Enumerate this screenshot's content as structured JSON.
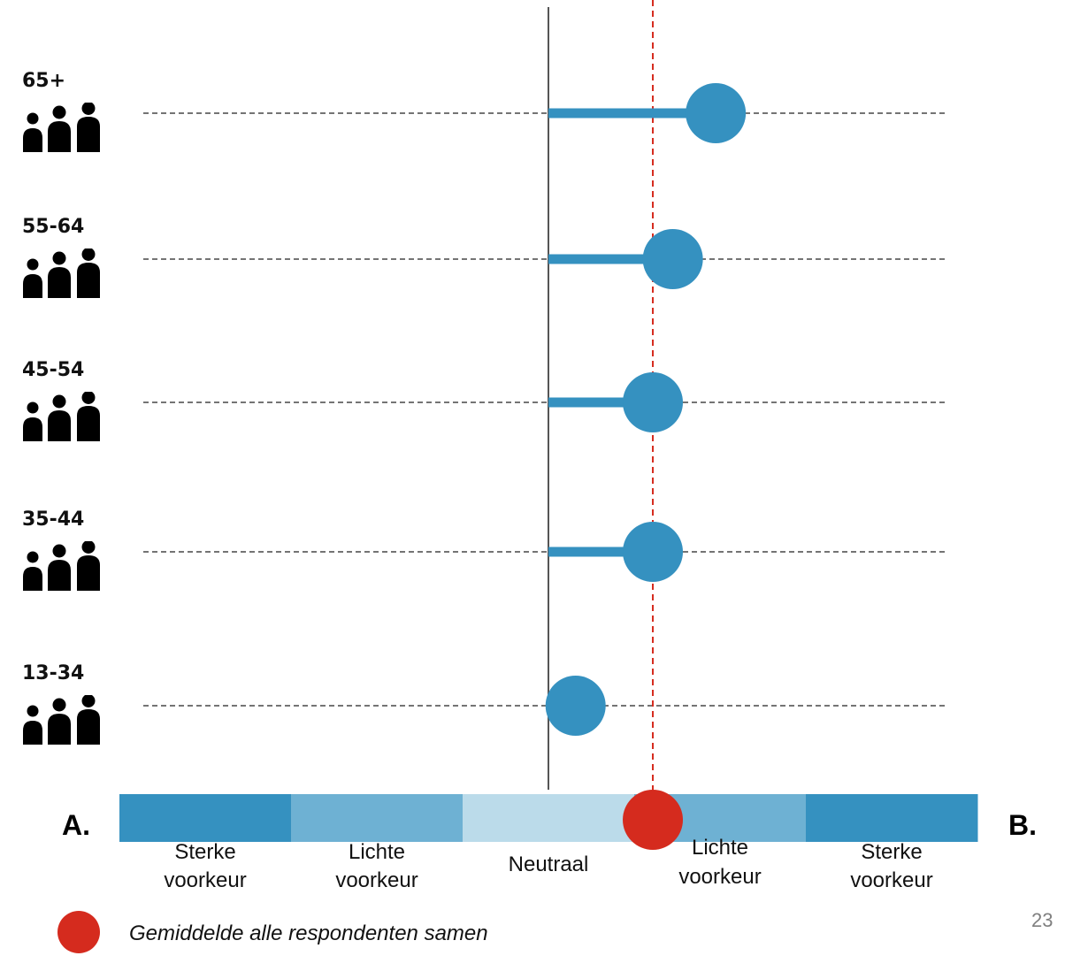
{
  "chart_data": {
    "type": "scatter",
    "title": "",
    "xlabel": "",
    "ylabel": "",
    "xlim": [
      -3,
      3
    ],
    "neutral": 0,
    "average": {
      "value": 0.73,
      "label": "Gemiddelde alle respondenten samen",
      "color": "#d52b1e"
    },
    "groups": [
      {
        "label": "65+",
        "value": 1.17
      },
      {
        "label": "55-64",
        "value": 0.87
      },
      {
        "label": "45-54",
        "value": 0.73
      },
      {
        "label": "35-44",
        "value": 0.73
      },
      {
        "label": "13-34",
        "value": 0.19
      }
    ],
    "scale": {
      "left_label": "A.",
      "right_label": "B.",
      "segments": [
        {
          "label_line1": "Sterke",
          "label_line2": "voorkeur",
          "color": "#3591c0"
        },
        {
          "label_line1": "Lichte",
          "label_line2": "voorkeur",
          "color": "#6eb1d3"
        },
        {
          "label_line1": "Neutraal",
          "label_line2": "",
          "color": "#bbdbea"
        },
        {
          "label_line1": "Lichte",
          "label_line2": "voorkeur",
          "color": "#6eb1d3"
        },
        {
          "label_line1": "Sterke",
          "label_line2": "voorkeur",
          "color": "#3591c0"
        }
      ]
    },
    "dot_color": "#3591c0",
    "grid": false
  },
  "page_number": "23"
}
